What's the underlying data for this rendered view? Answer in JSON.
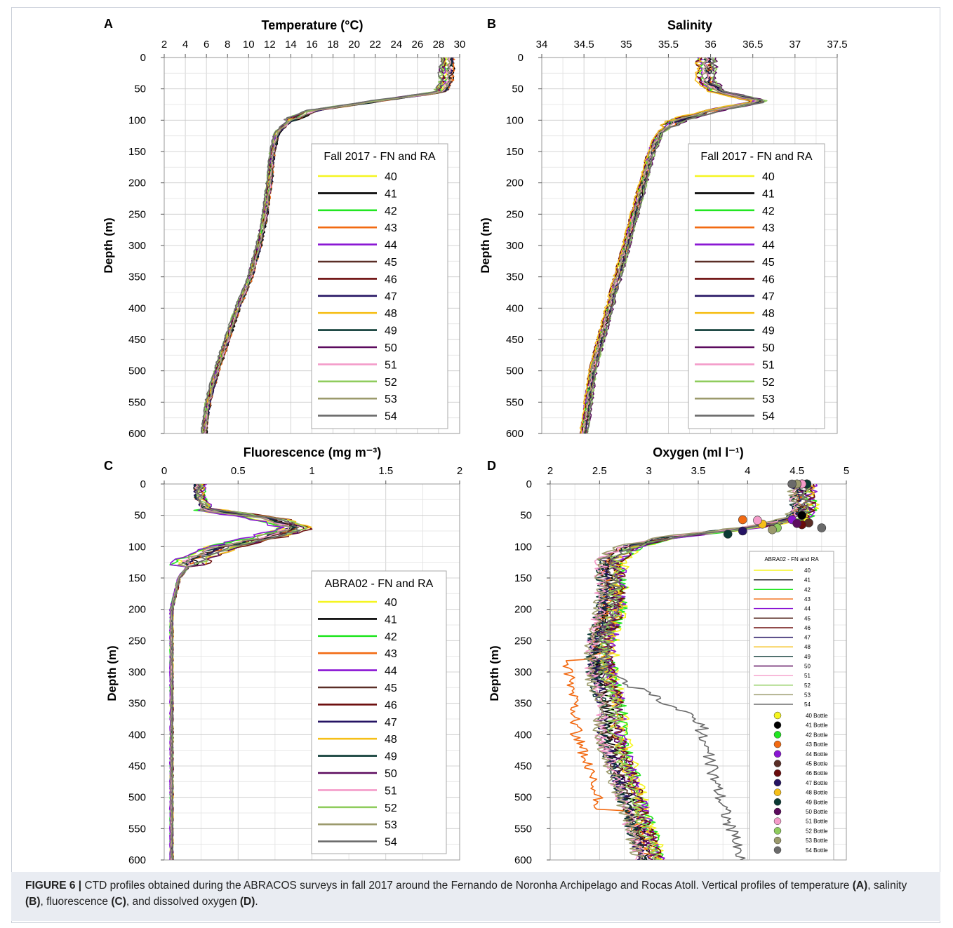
{
  "caption": {
    "label": "FIGURE 6 |",
    "text_1": " CTD profiles obtained during the ABRACOS surveys in fall 2017 around the Fernando de Noronha Archipelago and Rocas Atoll. Vertical profiles of temperature ",
    "ref_a": "(A)",
    "text_2": ", salinity ",
    "ref_b": "(B)",
    "text_3": ", fluorescence ",
    "ref_c": "(C)",
    "text_4": ", and dissolved oxygen ",
    "ref_d": "(D)",
    "text_5": "."
  },
  "colors": {
    "40": "#f5f521",
    "41": "#000000",
    "42": "#22e622",
    "43": "#f26a12",
    "44": "#8a16d4",
    "45": "#5a2e26",
    "46": "#6b0c0c",
    "47": "#251463",
    "48": "#f6bf18",
    "49": "#0b3a34",
    "50": "#5c0b5e",
    "51": "#f49bc9",
    "52": "#8fcc5d",
    "53": "#9b9a6c",
    "54": "#6a6a6a"
  },
  "chart_data": [
    {
      "panel": "A",
      "type": "line",
      "title": "Temperature (°C)",
      "ylabel": "Depth (m)",
      "xlim": [
        2,
        30
      ],
      "ylim": [
        0,
        600
      ],
      "x_ticks": [
        2,
        4,
        6,
        8,
        10,
        12,
        14,
        16,
        18,
        20,
        22,
        24,
        26,
        28,
        30
      ],
      "y_ticks": [
        0,
        50,
        100,
        150,
        200,
        250,
        300,
        350,
        400,
        450,
        500,
        550,
        600
      ],
      "legend_title": "Fall 2017 - FN and RA",
      "legend_position": "right",
      "grid": true,
      "stations": [
        "40",
        "41",
        "42",
        "43",
        "44",
        "45",
        "46",
        "47",
        "48",
        "49",
        "50",
        "51",
        "52",
        "53",
        "54"
      ],
      "profile_depths": [
        0,
        40,
        55,
        70,
        85,
        100,
        120,
        150,
        200,
        250,
        300,
        350,
        400,
        450,
        500,
        550,
        600
      ],
      "mean_profile": [
        28.9,
        28.8,
        28.3,
        22.0,
        16.0,
        14.0,
        12.7,
        12.3,
        12.0,
        11.6,
        11.0,
        10.2,
        9.0,
        8.0,
        7.0,
        6.2,
        5.8
      ]
    },
    {
      "panel": "B",
      "type": "line",
      "title": "Salinity",
      "ylabel": "Depth (m)",
      "xlim": [
        34,
        37.5
      ],
      "ylim": [
        0,
        600
      ],
      "x_ticks": [
        34,
        34.5,
        35,
        35.5,
        36,
        36.5,
        37,
        37.5
      ],
      "y_ticks": [
        0,
        50,
        100,
        150,
        200,
        250,
        300,
        350,
        400,
        450,
        500,
        550,
        600
      ],
      "legend_title": "Fall 2017 - FN and RA",
      "legend_position": "right",
      "grid": true,
      "stations": [
        "40",
        "41",
        "42",
        "43",
        "44",
        "45",
        "46",
        "47",
        "48",
        "49",
        "50",
        "51",
        "52",
        "53",
        "54"
      ],
      "profile_depths": [
        0,
        40,
        55,
        70,
        85,
        100,
        120,
        150,
        200,
        250,
        300,
        350,
        400,
        450,
        500,
        550,
        600
      ],
      "mean_profile": [
        35.95,
        35.95,
        36.1,
        36.6,
        36.0,
        35.6,
        35.4,
        35.3,
        35.2,
        35.1,
        35.0,
        34.9,
        34.8,
        34.7,
        34.6,
        34.55,
        34.5
      ]
    },
    {
      "panel": "C",
      "type": "line",
      "title": "Fluorescence (mg m⁻³)",
      "ylabel": "Depth (m)",
      "xlim": [
        0,
        2
      ],
      "ylim": [
        0,
        600
      ],
      "x_ticks": [
        0,
        0.5,
        1,
        1.5,
        2
      ],
      "y_ticks": [
        0,
        50,
        100,
        150,
        200,
        250,
        300,
        350,
        400,
        450,
        500,
        550,
        600
      ],
      "legend_title": "ABRA02 - FN and RA",
      "legend_position": "right",
      "grid": true,
      "stations": [
        "40",
        "41",
        "42",
        "43",
        "44",
        "45",
        "46",
        "47",
        "48",
        "49",
        "50",
        "51",
        "52",
        "53",
        "54"
      ],
      "profile_depths": [
        0,
        20,
        40,
        55,
        70,
        85,
        100,
        120,
        150,
        200,
        300,
        400,
        500,
        600
      ],
      "mean_profile": [
        0.2,
        0.2,
        0.25,
        0.7,
        0.9,
        0.7,
        0.4,
        0.2,
        0.1,
        0.05,
        0.05,
        0.05,
        0.05,
        0.05
      ]
    },
    {
      "panel": "D",
      "type": "line",
      "title": "Oxygen (ml l⁻¹)",
      "ylabel": "Depth (m)",
      "xlim": [
        2,
        5
      ],
      "ylim": [
        0,
        600
      ],
      "x_ticks": [
        2,
        2.5,
        3,
        3.5,
        4,
        4.5,
        5
      ],
      "y_ticks": [
        0,
        50,
        100,
        150,
        200,
        250,
        300,
        350,
        400,
        450,
        500,
        550,
        600
      ],
      "legend_title": "ABRA02 - FN and RA",
      "legend_position": "right",
      "grid": true,
      "stations": [
        "40",
        "41",
        "42",
        "43",
        "44",
        "45",
        "46",
        "47",
        "48",
        "49",
        "50",
        "51",
        "52",
        "53",
        "54"
      ],
      "bottle_labels": [
        "40 Bottle",
        "41 Bottle",
        "42 Bottle",
        "43 Bottle",
        "44 Bottle",
        "45 Bottle",
        "46 Bottle",
        "47 Bottle",
        "48 Bottle",
        "49 Bottle",
        "50 Bottle",
        "51 Bottle",
        "52 Bottle",
        "53 Bottle",
        "54 Bottle"
      ],
      "profile_depths": [
        0,
        40,
        55,
        70,
        85,
        100,
        120,
        150,
        200,
        250,
        300,
        350,
        400,
        450,
        500,
        550,
        600
      ],
      "mean_profile": [
        4.55,
        4.55,
        4.5,
        4.0,
        3.2,
        2.8,
        2.6,
        2.6,
        2.6,
        2.5,
        2.5,
        2.6,
        2.6,
        2.7,
        2.8,
        2.9,
        3.0
      ],
      "bottles": [
        {
          "station": "40",
          "points": [
            {
              "x": 4.55,
              "y": 0
            },
            {
              "x": 4.6,
              "y": 60
            }
          ]
        },
        {
          "station": "41",
          "points": [
            {
              "x": 4.6,
              "y": 0
            },
            {
              "x": 4.55,
              "y": 50
            }
          ]
        },
        {
          "station": "42",
          "points": [
            {
              "x": 4.55,
              "y": 0
            }
          ]
        },
        {
          "station": "43",
          "points": [
            {
              "x": 4.6,
              "y": 0
            },
            {
              "x": 3.95,
              "y": 57
            }
          ]
        },
        {
          "station": "44",
          "points": [
            {
              "x": 4.55,
              "y": 0
            },
            {
              "x": 4.45,
              "y": 57
            }
          ]
        },
        {
          "station": "45",
          "points": [
            {
              "x": 4.6,
              "y": 0
            },
            {
              "x": 4.62,
              "y": 62
            }
          ]
        },
        {
          "station": "46",
          "points": [
            {
              "x": 4.6,
              "y": 0
            },
            {
              "x": 4.55,
              "y": 65
            }
          ]
        },
        {
          "station": "47",
          "points": [
            {
              "x": 4.55,
              "y": 0
            },
            {
              "x": 3.95,
              "y": 75
            }
          ]
        },
        {
          "station": "48",
          "points": [
            {
              "x": 4.6,
              "y": 0
            },
            {
              "x": 4.15,
              "y": 64
            }
          ]
        },
        {
          "station": "49",
          "points": [
            {
              "x": 4.6,
              "y": 0
            },
            {
              "x": 3.8,
              "y": 80
            }
          ]
        },
        {
          "station": "50",
          "points": [
            {
              "x": 4.5,
              "y": 0
            },
            {
              "x": 4.5,
              "y": 63
            }
          ]
        },
        {
          "station": "51",
          "points": [
            {
              "x": 4.55,
              "y": 0
            },
            {
              "x": 4.1,
              "y": 58
            }
          ]
        },
        {
          "station": "52",
          "points": [
            {
              "x": 4.5,
              "y": 0
            },
            {
              "x": 4.3,
              "y": 70
            }
          ]
        },
        {
          "station": "53",
          "points": [
            {
              "x": 4.5,
              "y": 0
            },
            {
              "x": 4.25,
              "y": 73
            }
          ]
        },
        {
          "station": "54",
          "points": [
            {
              "x": 4.45,
              "y": 0
            },
            {
              "x": 4.75,
              "y": 70
            }
          ]
        }
      ]
    }
  ]
}
